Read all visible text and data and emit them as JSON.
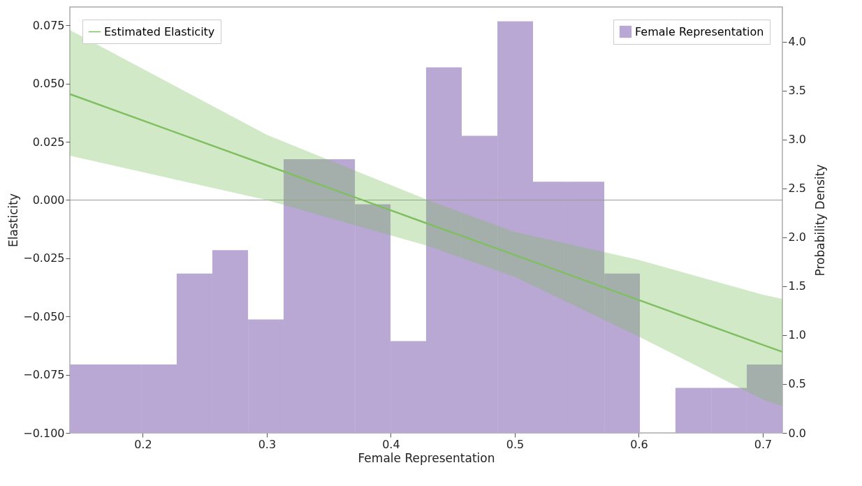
{
  "chart_data": {
    "type": "histogram",
    "xlabel": "Female Representation",
    "ylabel": "Elasticity",
    "y2label": "Probability Density",
    "xlim": [
      0.1412,
      0.7158
    ],
    "xticks": [
      0.2,
      0.3,
      0.4,
      0.5,
      0.6,
      0.7
    ],
    "ylim": [
      -0.1,
      0.0829
    ],
    "yticks": [
      {
        "value": -0.1,
        "label": "−0.100"
      },
      -0.075,
      {
        "value": -0.05,
        "label": "−0.050"
      },
      -0.025,
      {
        "value": 0,
        "label": "0.000"
      },
      0.025,
      {
        "value": 0.05,
        "label": "0.050"
      },
      0.075
    ],
    "y2lim": [
      0,
      4.357
    ],
    "y2ticks": [
      {
        "value": 0,
        "label": "0.0"
      },
      0.5,
      {
        "value": 1,
        "label": "1.0"
      },
      1.5,
      {
        "value": 2,
        "label": "2.0"
      },
      2.5,
      {
        "value": 3,
        "label": "3.0"
      },
      3.5,
      {
        "value": 4,
        "label": "4.0"
      }
    ],
    "legend": "top",
    "grid": false,
    "ref_lines": [
      {
        "axis": "y",
        "value": 0,
        "color": "#999999"
      }
    ],
    "series": [
      {
        "name": "Female Representation",
        "color": "#b9a7d4",
        "axis": "y2",
        "bins": [
          0.1412,
          0.1699,
          0.1987,
          0.2274,
          0.2561,
          0.2849,
          0.3136,
          0.3423,
          0.3711,
          0.3998,
          0.4285,
          0.4572,
          0.486,
          0.5147,
          0.5434,
          0.5722,
          0.6009,
          0.6296,
          0.6584,
          0.6871,
          0.7158
        ],
        "values": [
          0.7,
          0.7,
          0.7,
          1.63,
          1.87,
          1.16,
          2.8,
          2.8,
          2.34,
          0.94,
          3.74,
          3.04,
          4.21,
          2.57,
          2.57,
          1.63,
          0,
          0.46,
          0.46,
          0.7
        ]
      },
      {
        "type": "line",
        "name": "Estimated Elasticity",
        "color": "#7fbf62",
        "x": [
          0.1412,
          0.3,
          0.43,
          0.5,
          0.6,
          0.7,
          0.7158
        ],
        "values": [
          0.0455,
          0.0149,
          -0.0102,
          -0.0236,
          -0.0429,
          -0.0622,
          -0.0652
        ],
        "lower": [
          0.019,
          0.0,
          -0.0197,
          -0.033,
          -0.0586,
          -0.0856,
          -0.0886
        ],
        "upper": [
          0.073,
          0.028,
          0.0,
          -0.0137,
          -0.0257,
          -0.0406,
          -0.0424
        ]
      }
    ]
  }
}
